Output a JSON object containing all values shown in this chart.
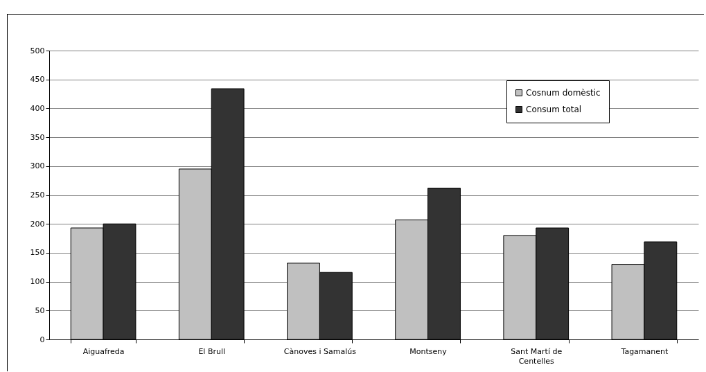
{
  "chart_data": {
    "type": "bar",
    "categories": [
      "Aiguafreda",
      "El Brull",
      "Cànoves i Samalús",
      "Montseny",
      "Sant Martí de Centelles",
      "Tagamanent"
    ],
    "series": [
      {
        "name": "Cosnum domèstic",
        "color": "#c0c0c0",
        "values": [
          193,
          295,
          132,
          207,
          180,
          130
        ]
      },
      {
        "name": "Consum total",
        "color": "#333333",
        "values": [
          200,
          434,
          116,
          262,
          193,
          169
        ]
      }
    ],
    "ylim": [
      0,
      500
    ],
    "yticks": [
      0,
      50,
      100,
      150,
      200,
      250,
      300,
      350,
      400,
      450,
      500
    ],
    "grid": "y",
    "legend": "top right"
  }
}
